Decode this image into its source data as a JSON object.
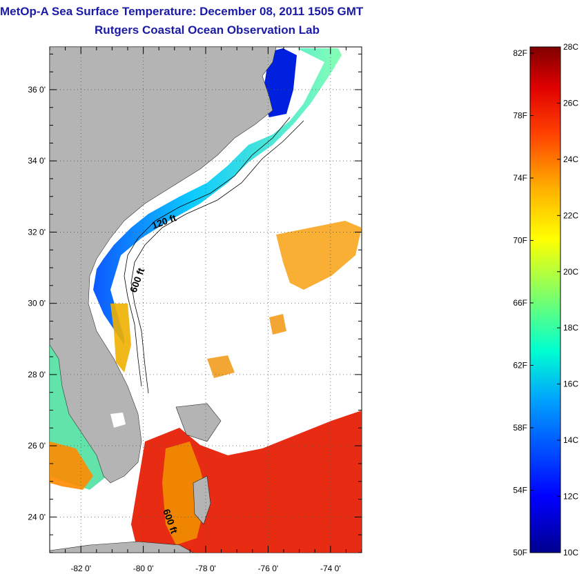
{
  "header": {
    "title": "MetOp-A Sea Surface Temperature:  December 08, 2011 1505 GMT",
    "subtitle": "Rutgers Coastal Ocean Observation Lab"
  },
  "map": {
    "lon_ticks": [
      "-82 0'",
      "-80 0'",
      "-78 0'",
      "-76 0'",
      "-74 0'"
    ],
    "lat_ticks": [
      "36 0'",
      "34 0'",
      "32 0'",
      "30 0'",
      "28 0'",
      "26 0'",
      "24 0'"
    ],
    "lon_values": [
      -82,
      -80,
      -78,
      -76,
      -74
    ],
    "lat_values": [
      36,
      34,
      32,
      30,
      28,
      26,
      24
    ],
    "lon_range": [
      -83,
      -73
    ],
    "lat_range": [
      23,
      37.2
    ],
    "contour_labels": [
      "120 ft",
      "600 ft",
      "600 ft"
    ],
    "land_color": "#b4b4b4",
    "grid": "dotted"
  },
  "colorbar": {
    "fahrenheit_labels": [
      "82F",
      "78F",
      "74F",
      "70F",
      "66F",
      "62F",
      "58F",
      "54F",
      "50F"
    ],
    "fahrenheit_values": [
      82,
      78,
      74,
      70,
      66,
      62,
      58,
      54,
      50
    ],
    "celsius_labels": [
      "28C",
      "26C",
      "24C",
      "22C",
      "20C",
      "18C",
      "16C",
      "14C",
      "12C",
      "10C"
    ],
    "celsius_values": [
      28,
      26,
      24,
      22,
      20,
      18,
      16,
      14,
      12,
      10
    ],
    "range_c": [
      10,
      28
    ]
  }
}
